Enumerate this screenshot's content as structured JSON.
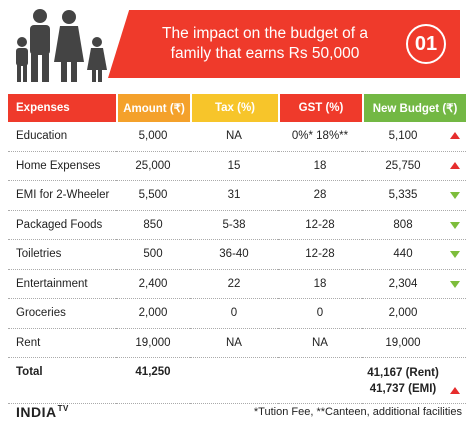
{
  "header": {
    "title": "The impact on the budget of a family that earns Rs 50,000",
    "badge": "01",
    "icon": "family-icon"
  },
  "colors": {
    "red": "#ef3a2b",
    "orange": "#f4a12b",
    "yellow": "#f7c52a",
    "green": "#73b844",
    "arrow_up": "#e62d2d",
    "arrow_down": "#7dbd3b"
  },
  "table": {
    "headers": [
      "Expenses",
      "Amount (₹)",
      "Tax (%)",
      "GST (%)",
      "New Budget (₹)"
    ],
    "rows": [
      {
        "expense": "Education",
        "amount": "5,000",
        "tax": "NA",
        "gst": "0%* 18%**",
        "new_budget": "5,100",
        "trend": "up"
      },
      {
        "expense": "Home Expenses",
        "amount": "25,000",
        "tax": "15",
        "gst": "18",
        "new_budget": "25,750",
        "trend": "up"
      },
      {
        "expense": "EMI for 2-Wheeler",
        "amount": "5,500",
        "tax": "31",
        "gst": "28",
        "new_budget": "5,335",
        "trend": "down"
      },
      {
        "expense": "Packaged Foods",
        "amount": "850",
        "tax": "5-38",
        "gst": "12-28",
        "new_budget": "808",
        "trend": "down"
      },
      {
        "expense": "Toiletries",
        "amount": "500",
        "tax": "36-40",
        "gst": "12-28",
        "new_budget": "440",
        "trend": "down"
      },
      {
        "expense": "Entertainment",
        "amount": "2,400",
        "tax": "22",
        "gst": "18",
        "new_budget": "2,304",
        "trend": "down"
      },
      {
        "expense": "Groceries",
        "amount": "2,000",
        "tax": "0",
        "gst": "0",
        "new_budget": "2,000",
        "trend": "none"
      },
      {
        "expense": "Rent",
        "amount": "19,000",
        "tax": "NA",
        "gst": "NA",
        "new_budget": "19,000",
        "trend": "none"
      }
    ],
    "total": {
      "label": "Total",
      "amount": "41,250",
      "new_budget_line1": "41,167 (Rent)",
      "new_budget_line2": "41,737 (EMI)",
      "trend": "up"
    }
  },
  "footer": {
    "logo": "INDIA",
    "logo_suffix": "TV",
    "note": "*Tution Fee, **Canteen, additional facilities"
  }
}
